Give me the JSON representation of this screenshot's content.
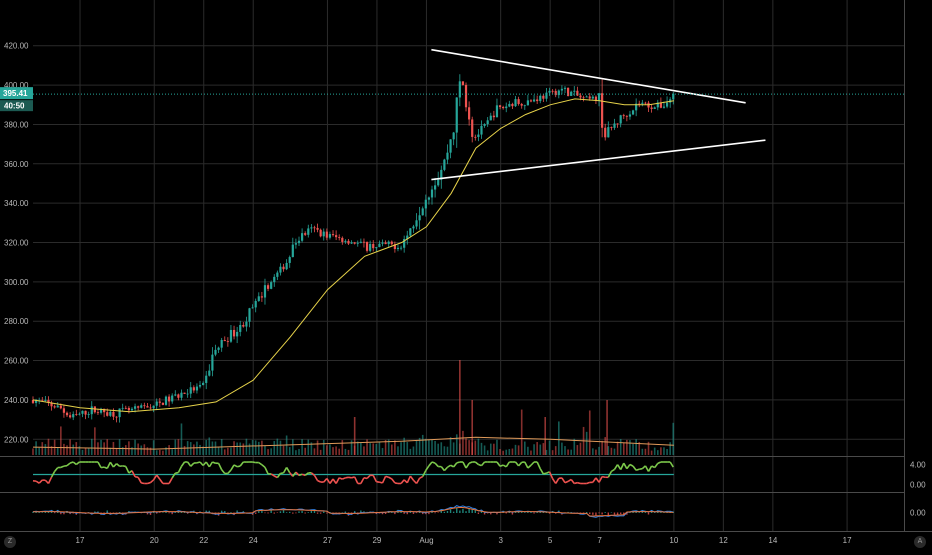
{
  "chart_data": {
    "type": "candlestick",
    "y_axis": {
      "ticks": [
        "420.00",
        "400.00",
        "380.00",
        "360.00",
        "340.00",
        "320.00",
        "300.00",
        "280.00",
        "260.00",
        "240.00",
        "220.00"
      ],
      "ylim": [
        212,
        428
      ]
    },
    "x_axis": {
      "ticks": [
        {
          "label": "17",
          "day": 17
        },
        {
          "label": "20",
          "day": 20
        },
        {
          "label": "22",
          "day": 22
        },
        {
          "label": "24",
          "day": 24
        },
        {
          "label": "27",
          "day": 27
        },
        {
          "label": "29",
          "day": 29
        },
        {
          "label": "Aug",
          "day": 31
        },
        {
          "label": "3",
          "day": 34
        },
        {
          "label": "5",
          "day": 36
        },
        {
          "label": "7",
          "day": 38
        },
        {
          "label": "10",
          "day": 41
        },
        {
          "label": "12",
          "day": 43
        },
        {
          "label": "14",
          "day": 45
        },
        {
          "label": "17",
          "day": 48
        }
      ],
      "xlim": [
        15.1,
        50.3
      ]
    },
    "last_price": {
      "label": "395.41",
      "value": 395.4,
      "color": "#26a69a"
    },
    "countdown": {
      "label": "40:50"
    },
    "trendlines": [
      {
        "from": [
          31.2,
          418
        ],
        "to": [
          43.9,
          391
        ]
      },
      {
        "from": [
          31.2,
          352
        ],
        "to": [
          44.7,
          372
        ]
      }
    ],
    "price_path": [
      [
        15.1,
        240
      ],
      [
        16.2,
        236
      ],
      [
        16.6,
        231
      ],
      [
        17.5,
        235
      ],
      [
        18.3,
        233
      ],
      [
        19.2,
        235
      ],
      [
        20.2,
        238
      ],
      [
        20.9,
        242
      ],
      [
        21.5,
        245
      ],
      [
        22.0,
        247
      ],
      [
        22.4,
        264
      ],
      [
        22.8,
        270
      ],
      [
        23.5,
        277
      ],
      [
        24.0,
        287
      ],
      [
        24.6,
        298
      ],
      [
        25.3,
        309
      ],
      [
        25.8,
        322
      ],
      [
        26.4,
        327
      ],
      [
        26.9,
        324
      ],
      [
        27.5,
        322
      ],
      [
        28.1,
        320
      ],
      [
        28.6,
        318
      ],
      [
        29.4,
        319
      ],
      [
        29.9,
        318
      ],
      [
        30.3,
        325
      ],
      [
        30.8,
        340
      ],
      [
        31.3,
        350
      ],
      [
        31.7,
        360
      ],
      [
        32.1,
        378
      ],
      [
        32.4,
        405
      ],
      [
        32.9,
        373
      ],
      [
        33.3,
        378
      ],
      [
        33.8,
        387
      ],
      [
        34.5,
        391
      ],
      [
        35.2,
        392
      ],
      [
        35.9,
        395
      ],
      [
        36.5,
        398
      ],
      [
        37.0,
        395
      ],
      [
        37.5,
        392
      ],
      [
        38.0,
        394
      ],
      [
        38.2,
        374
      ],
      [
        38.6,
        380
      ],
      [
        39.1,
        386
      ],
      [
        39.6,
        391
      ],
      [
        40.2,
        389
      ],
      [
        40.6,
        390
      ],
      [
        41.0,
        395
      ]
    ],
    "moving_average": [
      [
        15.1,
        240
      ],
      [
        17,
        236
      ],
      [
        19,
        234
      ],
      [
        21,
        236
      ],
      [
        22.5,
        239
      ],
      [
        24,
        250
      ],
      [
        25.5,
        272
      ],
      [
        27,
        296
      ],
      [
        28.5,
        313
      ],
      [
        30,
        320
      ],
      [
        31,
        328
      ],
      [
        32,
        345
      ],
      [
        33,
        368
      ],
      [
        34,
        378
      ],
      [
        35,
        385
      ],
      [
        36,
        390
      ],
      [
        37,
        393
      ],
      [
        38,
        392
      ],
      [
        39,
        390
      ],
      [
        40,
        390
      ],
      [
        41,
        392
      ]
    ],
    "volume_ma": [
      [
        15.1,
        216
      ],
      [
        20,
        215
      ],
      [
        25,
        217
      ],
      [
        30,
        219
      ],
      [
        33,
        221
      ],
      [
        36,
        220
      ],
      [
        41,
        217
      ]
    ],
    "indicator_1": {
      "ticks": [
        {
          "label": "4.00",
          "value": 4
        },
        {
          "label": "0.00",
          "value": 0
        }
      ],
      "ylim": [
        -1.3,
        5.3
      ]
    },
    "indicator_2": {
      "ticks": [
        {
          "label": "0.00",
          "value": 0
        }
      ],
      "ylim": [
        -4,
        4
      ]
    },
    "corner_buttons": [
      "Z",
      "A"
    ],
    "colors": {
      "up": "#26a69a",
      "down": "#ef5350",
      "ma": "#e6d24a",
      "volume_ma": "#e09a5a",
      "grid": "#2b2b2b",
      "axis": "#4a4a4a",
      "trendline": "#ffffff"
    }
  }
}
